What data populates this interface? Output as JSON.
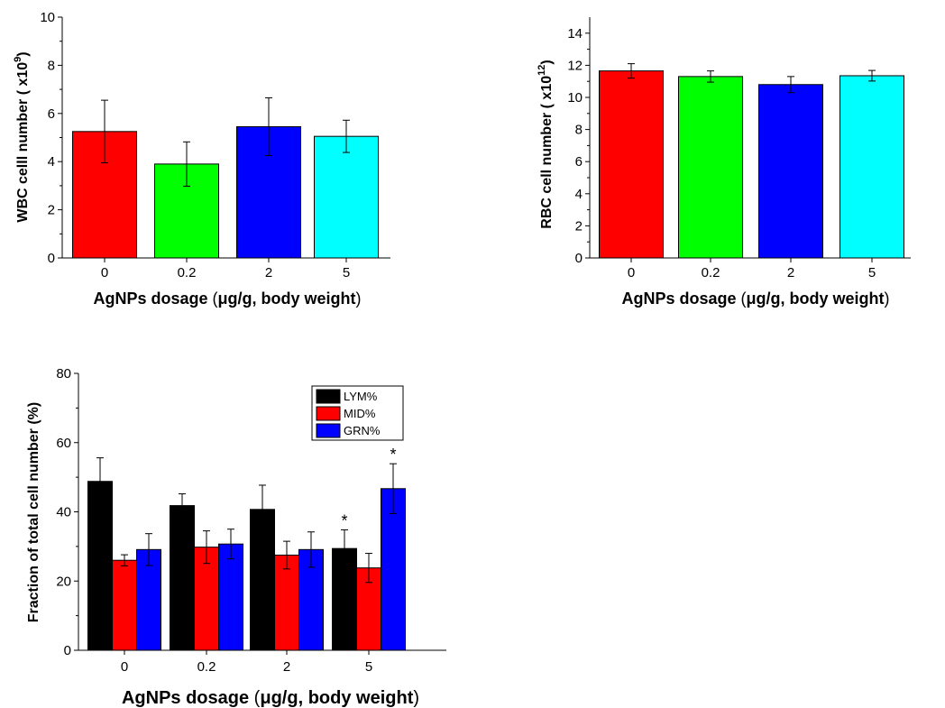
{
  "chart_data": [
    {
      "type": "bar",
      "categories": [
        "0",
        "0.2",
        "2",
        "5"
      ],
      "values": [
        5.25,
        3.9,
        5.45,
        5.05
      ],
      "errors": [
        1.3,
        0.92,
        1.2,
        0.67
      ],
      "colors": [
        "#ff0000",
        "#00ff00",
        "#0000ff",
        "#00ffff"
      ],
      "ylabel_main": "WBC celll number ( x10",
      "ylabel_exp": "9",
      "ylabel_close": ")",
      "xlabel_a": "AgNPs dosage ",
      "xlabel_b": "(",
      "xlabel_mu": "μ",
      "xlabel_c": "g/g, body weight",
      "xlabel_d": ")",
      "ylim": [
        0,
        10
      ],
      "yticks": [
        "0",
        "2",
        "4",
        "6",
        "8",
        "10"
      ]
    },
    {
      "type": "bar",
      "categories": [
        "0",
        "0.2",
        "2",
        "5"
      ],
      "values": [
        11.65,
        11.3,
        10.8,
        11.35
      ],
      "errors": [
        0.45,
        0.35,
        0.5,
        0.33
      ],
      "colors": [
        "#ff0000",
        "#00ff00",
        "#0000ff",
        "#00ffff"
      ],
      "ylabel_main": "RBC cell number ( x10",
      "ylabel_exp": "12",
      "ylabel_close": ")",
      "xlabel_a": "AgNPs dosage ",
      "xlabel_b": "(",
      "xlabel_mu": "μ",
      "xlabel_c": "g/g, body weight",
      "xlabel_d": ")",
      "ylim": [
        0,
        15
      ],
      "yticks": [
        "0",
        "2",
        "4",
        "6",
        "8",
        "10",
        "12",
        "14"
      ]
    },
    {
      "type": "bar",
      "categories": [
        "0",
        "0.2",
        "2",
        "5"
      ],
      "series": [
        {
          "name": "LYM%",
          "color": "#000000",
          "values": [
            48.8,
            41.8,
            40.7,
            29.4
          ],
          "errors": [
            6.8,
            3.4,
            7.0,
            5.4
          ],
          "star": [
            false,
            false,
            false,
            true
          ]
        },
        {
          "name": "MID%",
          "color": "#ff0000",
          "values": [
            26.0,
            29.8,
            27.5,
            23.8
          ],
          "errors": [
            1.6,
            4.7,
            4.0,
            4.2
          ],
          "star": [
            false,
            false,
            false,
            false
          ]
        },
        {
          "name": "GRN%",
          "color": "#0000ff",
          "values": [
            29.1,
            30.7,
            29.1,
            46.7
          ],
          "errors": [
            4.6,
            4.3,
            5.1,
            7.2
          ],
          "star": [
            false,
            false,
            false,
            true
          ]
        }
      ],
      "star_label": "*",
      "ylabel": "Fraction of total cell number (%)",
      "xlabel_a": "AgNPs dosage ",
      "xlabel_b": "(",
      "xlabel_mu": "μ",
      "xlabel_c": "g/g, body weight",
      "xlabel_d": ")",
      "ylim": [
        0,
        80
      ],
      "yticks": [
        "0",
        "20",
        "40",
        "60",
        "80"
      ]
    }
  ]
}
